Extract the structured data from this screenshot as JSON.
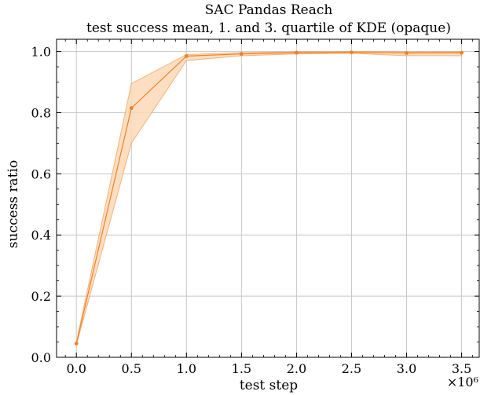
{
  "chart_data": {
    "type": "line",
    "title": "SAC Pandas Reach",
    "subtitle": "test success mean, 1. and 3. quartile of KDE (opaque)",
    "xlabel": "test step",
    "ylabel": "success ratio",
    "x_multiplier_label": "×10⁶",
    "xlim": [
      -0.18,
      3.66
    ],
    "ylim": [
      0.0,
      1.04
    ],
    "grid": true,
    "x_ticks": [
      0.0,
      0.5,
      1.0,
      1.5,
      2.0,
      2.5,
      3.0,
      3.5
    ],
    "x_tick_labels": [
      "0.0",
      "0.5",
      "1.0",
      "1.5",
      "2.0",
      "2.5",
      "3.0",
      "3.5"
    ],
    "y_ticks": [
      0.0,
      0.2,
      0.4,
      0.6,
      0.8,
      1.0
    ],
    "y_tick_labels": [
      "0.0",
      "0.2",
      "0.4",
      "0.6",
      "0.8",
      "1.0"
    ],
    "color": "#f28022",
    "band_color": "#fcd9b8",
    "x": [
      0.0,
      0.5,
      1.0,
      1.5,
      2.0,
      2.5,
      3.0,
      3.5
    ],
    "mean": [
      0.045,
      0.815,
      0.985,
      0.992,
      0.996,
      0.997,
      0.995,
      0.996
    ],
    "q1": [
      0.04,
      0.7,
      0.97,
      0.986,
      0.992,
      0.994,
      0.986,
      0.986
    ],
    "q3": [
      0.05,
      0.895,
      0.99,
      0.996,
      0.999,
      1.0,
      0.999,
      0.999
    ]
  }
}
